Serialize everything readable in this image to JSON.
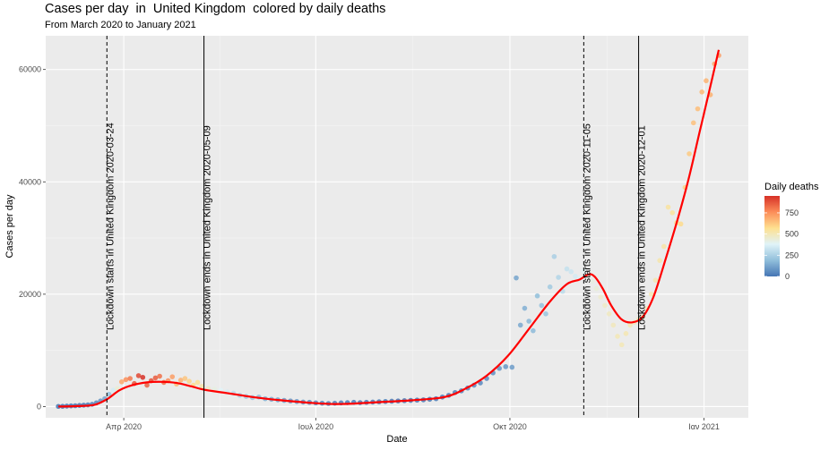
{
  "chart_data": {
    "type": "scatter",
    "title": "Cases per day  in  United Kingdom  colored by daily deaths",
    "subtitle": "From March 2020 to January 2021",
    "xlabel": "Date",
    "ylabel": "Cases per day",
    "x_ticks": [
      "Απρ 2020",
      "Ιουλ 2020",
      "Οκτ 2020",
      "Ιαν 2021"
    ],
    "x_tick_dates": [
      "2020-04-01",
      "2020-07-01",
      "2020-10-01",
      "2021-01-01"
    ],
    "xlim": [
      "2020-02-24",
      "2021-01-22"
    ],
    "y_ticks": [
      0,
      20000,
      40000,
      60000
    ],
    "ylim": [
      -2000,
      66000
    ],
    "grid": true,
    "legend": {
      "title": "Daily deaths",
      "placement": "right",
      "ticks": [
        0,
        250,
        500,
        750
      ],
      "range": [
        0,
        950
      ],
      "colors": [
        "#4575b4",
        "#91bfdb",
        "#e0f3f8",
        "#fee090",
        "#fc8d59",
        "#d73027"
      ]
    },
    "smooth_color": "#ff0000",
    "vlines": [
      {
        "date": "2020-03-24",
        "label": "Lockdown starts in  United Kingdom 2020-03-24",
        "style": "dashed"
      },
      {
        "date": "2020-05-09",
        "label": "Lockdown ends in  United Kingdom 2020-05-09",
        "style": "solid"
      },
      {
        "date": "2020-11-05",
        "label": "Lockdown starts in  United Kingdom 2020-11-05",
        "style": "dashed"
      },
      {
        "date": "2020-12-01",
        "label": "Lockdown ends in  United Kingdom 2020-12-01",
        "style": "solid"
      }
    ],
    "points": [
      {
        "x": "2020-03-01",
        "y": 30,
        "deaths": 0
      },
      {
        "x": "2020-03-03",
        "y": 40,
        "deaths": 0
      },
      {
        "x": "2020-03-05",
        "y": 80,
        "deaths": 0
      },
      {
        "x": "2020-03-07",
        "y": 120,
        "deaths": 1
      },
      {
        "x": "2020-03-09",
        "y": 150,
        "deaths": 2
      },
      {
        "x": "2020-03-11",
        "y": 200,
        "deaths": 3
      },
      {
        "x": "2020-03-13",
        "y": 250,
        "deaths": 6
      },
      {
        "x": "2020-03-15",
        "y": 300,
        "deaths": 14
      },
      {
        "x": "2020-03-17",
        "y": 400,
        "deaths": 30
      },
      {
        "x": "2020-03-19",
        "y": 650,
        "deaths": 50
      },
      {
        "x": "2020-03-21",
        "y": 1000,
        "deaths": 80
      },
      {
        "x": "2020-03-23",
        "y": 1400,
        "deaths": 120
      },
      {
        "x": "2020-03-25",
        "y": 2200,
        "deaths": 200
      },
      {
        "x": "2020-03-27",
        "y": 2900,
        "deaths": 350
      },
      {
        "x": "2020-03-29",
        "y": 3200,
        "deaths": 450
      },
      {
        "x": "2020-03-31",
        "y": 4400,
        "deaths": 700
      },
      {
        "x": "2020-04-02",
        "y": 4800,
        "deaths": 750
      },
      {
        "x": "2020-04-04",
        "y": 5000,
        "deaths": 800
      },
      {
        "x": "2020-04-06",
        "y": 4100,
        "deaths": 870
      },
      {
        "x": "2020-04-08",
        "y": 5500,
        "deaths": 900
      },
      {
        "x": "2020-04-10",
        "y": 5200,
        "deaths": 950
      },
      {
        "x": "2020-04-12",
        "y": 3800,
        "deaths": 850
      },
      {
        "x": "2020-04-14",
        "y": 4600,
        "deaths": 880
      },
      {
        "x": "2020-04-16",
        "y": 5100,
        "deaths": 860
      },
      {
        "x": "2020-04-18",
        "y": 5400,
        "deaths": 820
      },
      {
        "x": "2020-04-20",
        "y": 4300,
        "deaths": 830
      },
      {
        "x": "2020-04-22",
        "y": 4600,
        "deaths": 760
      },
      {
        "x": "2020-04-24",
        "y": 5300,
        "deaths": 720
      },
      {
        "x": "2020-04-26",
        "y": 4000,
        "deaths": 650
      },
      {
        "x": "2020-04-28",
        "y": 4700,
        "deaths": 680
      },
      {
        "x": "2020-04-30",
        "y": 5000,
        "deaths": 630
      },
      {
        "x": "2020-05-02",
        "y": 4500,
        "deaths": 600
      },
      {
        "x": "2020-05-04",
        "y": 3800,
        "deaths": 580
      },
      {
        "x": "2020-05-06",
        "y": 4300,
        "deaths": 560
      },
      {
        "x": "2020-05-08",
        "y": 3600,
        "deaths": 520
      },
      {
        "x": "2020-05-11",
        "y": 3200,
        "deaths": 470
      },
      {
        "x": "2020-05-14",
        "y": 3100,
        "deaths": 420
      },
      {
        "x": "2020-05-17",
        "y": 2900,
        "deaths": 380
      },
      {
        "x": "2020-05-20",
        "y": 2600,
        "deaths": 350
      },
      {
        "x": "2020-05-23",
        "y": 2400,
        "deaths": 300
      },
      {
        "x": "2020-05-26",
        "y": 2000,
        "deaths": 260
      },
      {
        "x": "2020-05-29",
        "y": 1800,
        "deaths": 230
      },
      {
        "x": "2020-06-01",
        "y": 1600,
        "deaths": 210
      },
      {
        "x": "2020-06-04",
        "y": 1700,
        "deaths": 190
      },
      {
        "x": "2020-06-07",
        "y": 1400,
        "deaths": 160
      },
      {
        "x": "2020-06-10",
        "y": 1300,
        "deaths": 140
      },
      {
        "x": "2020-06-13",
        "y": 1200,
        "deaths": 120
      },
      {
        "x": "2020-06-16",
        "y": 1100,
        "deaths": 100
      },
      {
        "x": "2020-06-19",
        "y": 1000,
        "deaths": 90
      },
      {
        "x": "2020-06-22",
        "y": 900,
        "deaths": 80
      },
      {
        "x": "2020-06-25",
        "y": 800,
        "deaths": 70
      },
      {
        "x": "2020-06-28",
        "y": 750,
        "deaths": 60
      },
      {
        "x": "2020-07-01",
        "y": 650,
        "deaths": 50
      },
      {
        "x": "2020-07-04",
        "y": 600,
        "deaths": 45
      },
      {
        "x": "2020-07-07",
        "y": 550,
        "deaths": 40
      },
      {
        "x": "2020-07-10",
        "y": 600,
        "deaths": 35
      },
      {
        "x": "2020-07-13",
        "y": 650,
        "deaths": 30
      },
      {
        "x": "2020-07-16",
        "y": 700,
        "deaths": 25
      },
      {
        "x": "2020-07-19",
        "y": 750,
        "deaths": 20
      },
      {
        "x": "2020-07-22",
        "y": 700,
        "deaths": 18
      },
      {
        "x": "2020-07-25",
        "y": 750,
        "deaths": 16
      },
      {
        "x": "2020-07-28",
        "y": 800,
        "deaths": 14
      },
      {
        "x": "2020-07-31",
        "y": 850,
        "deaths": 12
      },
      {
        "x": "2020-08-03",
        "y": 900,
        "deaths": 10
      },
      {
        "x": "2020-08-06",
        "y": 950,
        "deaths": 10
      },
      {
        "x": "2020-08-09",
        "y": 1000,
        "deaths": 10
      },
      {
        "x": "2020-08-12",
        "y": 1050,
        "deaths": 12
      },
      {
        "x": "2020-08-15",
        "y": 1100,
        "deaths": 12
      },
      {
        "x": "2020-08-18",
        "y": 1150,
        "deaths": 14
      },
      {
        "x": "2020-08-21",
        "y": 1200,
        "deaths": 15
      },
      {
        "x": "2020-08-24",
        "y": 1300,
        "deaths": 15
      },
      {
        "x": "2020-08-27",
        "y": 1400,
        "deaths": 18
      },
      {
        "x": "2020-08-30",
        "y": 1700,
        "deaths": 20
      },
      {
        "x": "2020-09-02",
        "y": 2000,
        "deaths": 25
      },
      {
        "x": "2020-09-05",
        "y": 2500,
        "deaths": 30
      },
      {
        "x": "2020-09-08",
        "y": 2800,
        "deaths": 35
      },
      {
        "x": "2020-09-11",
        "y": 3300,
        "deaths": 40
      },
      {
        "x": "2020-09-14",
        "y": 3800,
        "deaths": 50
      },
      {
        "x": "2020-09-17",
        "y": 4200,
        "deaths": 55
      },
      {
        "x": "2020-09-20",
        "y": 5000,
        "deaths": 60
      },
      {
        "x": "2020-09-23",
        "y": 6000,
        "deaths": 70
      },
      {
        "x": "2020-09-26",
        "y": 6800,
        "deaths": 80
      },
      {
        "x": "2020-09-29",
        "y": 7100,
        "deaths": 90
      },
      {
        "x": "2020-10-02",
        "y": 7000,
        "deaths": 100
      },
      {
        "x": "2020-10-04",
        "y": 22900,
        "deaths": 120
      },
      {
        "x": "2020-10-06",
        "y": 14500,
        "deaths": 130
      },
      {
        "x": "2020-10-08",
        "y": 17500,
        "deaths": 150
      },
      {
        "x": "2020-10-10",
        "y": 15200,
        "deaths": 170
      },
      {
        "x": "2020-10-12",
        "y": 13500,
        "deaths": 180
      },
      {
        "x": "2020-10-14",
        "y": 19700,
        "deaths": 190
      },
      {
        "x": "2020-10-16",
        "y": 18000,
        "deaths": 200
      },
      {
        "x": "2020-10-18",
        "y": 16500,
        "deaths": 210
      },
      {
        "x": "2020-10-20",
        "y": 21300,
        "deaths": 230
      },
      {
        "x": "2020-10-22",
        "y": 26700,
        "deaths": 250
      },
      {
        "x": "2020-10-24",
        "y": 23000,
        "deaths": 270
      },
      {
        "x": "2020-10-26",
        "y": 20500,
        "deaths": 290
      },
      {
        "x": "2020-10-28",
        "y": 24500,
        "deaths": 310
      },
      {
        "x": "2020-10-30",
        "y": 24000,
        "deaths": 330
      },
      {
        "x": "2020-11-01",
        "y": 23200,
        "deaths": 350
      },
      {
        "x": "2020-11-03",
        "y": 22700,
        "deaths": 370
      },
      {
        "x": "2020-11-05",
        "y": 24100,
        "deaths": 390
      },
      {
        "x": "2020-11-07",
        "y": 23300,
        "deaths": 410
      },
      {
        "x": "2020-11-09",
        "y": 22300,
        "deaths": 420
      },
      {
        "x": "2020-11-11",
        "y": 21000,
        "deaths": 440
      },
      {
        "x": "2020-11-13",
        "y": 19500,
        "deaths": 460
      },
      {
        "x": "2020-11-15",
        "y": 18000,
        "deaths": 470
      },
      {
        "x": "2020-11-17",
        "y": 16500,
        "deaths": 480
      },
      {
        "x": "2020-11-19",
        "y": 14500,
        "deaths": 490
      },
      {
        "x": "2020-11-21",
        "y": 12500,
        "deaths": 500
      },
      {
        "x": "2020-11-23",
        "y": 11000,
        "deaths": 500
      },
      {
        "x": "2020-11-25",
        "y": 13000,
        "deaths": 510
      },
      {
        "x": "2020-11-27",
        "y": 14500,
        "deaths": 500
      },
      {
        "x": "2020-11-29",
        "y": 15000,
        "deaths": 490
      },
      {
        "x": "2020-12-01",
        "y": 15500,
        "deaths": 490
      },
      {
        "x": "2020-12-03",
        "y": 16000,
        "deaths": 480
      },
      {
        "x": "2020-12-05",
        "y": 17500,
        "deaths": 490
      },
      {
        "x": "2020-12-07",
        "y": 20000,
        "deaths": 500
      },
      {
        "x": "2020-12-09",
        "y": 22500,
        "deaths": 510
      },
      {
        "x": "2020-12-11",
        "y": 26000,
        "deaths": 520
      },
      {
        "x": "2020-12-13",
        "y": 28500,
        "deaths": 530
      },
      {
        "x": "2020-12-15",
        "y": 35500,
        "deaths": 540
      },
      {
        "x": "2020-12-17",
        "y": 34500,
        "deaths": 545
      },
      {
        "x": "2020-12-19",
        "y": 32700,
        "deaths": 560
      },
      {
        "x": "2020-12-21",
        "y": 32500,
        "deaths": 580
      },
      {
        "x": "2020-12-23",
        "y": 39000,
        "deaths": 600
      },
      {
        "x": "2020-12-25",
        "y": 45000,
        "deaths": 620
      },
      {
        "x": "2020-12-27",
        "y": 50500,
        "deaths": 640
      },
      {
        "x": "2020-12-29",
        "y": 53000,
        "deaths": 650
      },
      {
        "x": "2020-12-31",
        "y": 56000,
        "deaths": 660
      },
      {
        "x": "2021-01-02",
        "y": 58000,
        "deaths": 670
      },
      {
        "x": "2021-01-04",
        "y": 55500,
        "deaths": 680
      },
      {
        "x": "2021-01-06",
        "y": 61000,
        "deaths": 700
      },
      {
        "x": "2021-01-08",
        "y": 62500,
        "deaths": 720
      }
    ],
    "smooth": [
      {
        "x": "2020-03-01",
        "y": 0
      },
      {
        "x": "2020-03-10",
        "y": 80
      },
      {
        "x": "2020-03-18",
        "y": 300
      },
      {
        "x": "2020-03-24",
        "y": 1300
      },
      {
        "x": "2020-03-30",
        "y": 2900
      },
      {
        "x": "2020-04-05",
        "y": 3800
      },
      {
        "x": "2020-04-12",
        "y": 4300
      },
      {
        "x": "2020-04-19",
        "y": 4400
      },
      {
        "x": "2020-04-26",
        "y": 4200
      },
      {
        "x": "2020-05-03",
        "y": 3600
      },
      {
        "x": "2020-05-09",
        "y": 3000
      },
      {
        "x": "2020-05-20",
        "y": 2400
      },
      {
        "x": "2020-06-01",
        "y": 1700
      },
      {
        "x": "2020-06-15",
        "y": 1100
      },
      {
        "x": "2020-07-01",
        "y": 600
      },
      {
        "x": "2020-07-10",
        "y": 450
      },
      {
        "x": "2020-07-20",
        "y": 550
      },
      {
        "x": "2020-08-01",
        "y": 800
      },
      {
        "x": "2020-08-15",
        "y": 1100
      },
      {
        "x": "2020-08-31",
        "y": 1700
      },
      {
        "x": "2020-09-10",
        "y": 3200
      },
      {
        "x": "2020-09-20",
        "y": 5500
      },
      {
        "x": "2020-09-30",
        "y": 9000
      },
      {
        "x": "2020-10-10",
        "y": 13800
      },
      {
        "x": "2020-10-20",
        "y": 18700
      },
      {
        "x": "2020-10-28",
        "y": 21800
      },
      {
        "x": "2020-11-03",
        "y": 22600
      },
      {
        "x": "2020-11-07",
        "y": 23500
      },
      {
        "x": "2020-11-10",
        "y": 23200
      },
      {
        "x": "2020-11-14",
        "y": 21000
      },
      {
        "x": "2020-11-18",
        "y": 18000
      },
      {
        "x": "2020-11-23",
        "y": 15500
      },
      {
        "x": "2020-11-28",
        "y": 15000
      },
      {
        "x": "2020-12-03",
        "y": 16000
      },
      {
        "x": "2020-12-08",
        "y": 19500
      },
      {
        "x": "2020-12-14",
        "y": 26500
      },
      {
        "x": "2020-12-20",
        "y": 34000
      },
      {
        "x": "2020-12-25",
        "y": 41000
      },
      {
        "x": "2020-12-30",
        "y": 49000
      },
      {
        "x": "2021-01-04",
        "y": 57000
      },
      {
        "x": "2021-01-08",
        "y": 63500
      }
    ]
  }
}
